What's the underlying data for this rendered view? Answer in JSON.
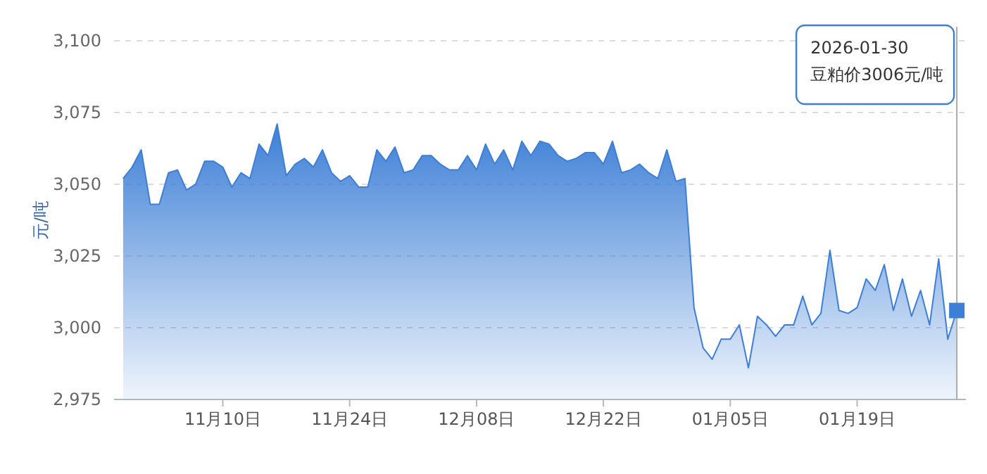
{
  "chart_data": {
    "type": "area",
    "ylabel": "元/吨",
    "x": [
      "2025-10-30",
      "2025-10-31",
      "2025-11-01",
      "2025-11-02",
      "2025-11-03",
      "2025-11-04",
      "2025-11-05",
      "2025-11-06",
      "2025-11-07",
      "2025-11-08",
      "2025-11-09",
      "2025-11-10",
      "2025-11-11",
      "2025-11-12",
      "2025-11-13",
      "2025-11-14",
      "2025-11-15",
      "2025-11-16",
      "2025-11-17",
      "2025-11-18",
      "2025-11-19",
      "2025-11-20",
      "2025-11-21",
      "2025-11-22",
      "2025-11-23",
      "2025-11-24",
      "2025-11-25",
      "2025-11-26",
      "2025-11-27",
      "2025-11-28",
      "2025-11-29",
      "2025-11-30",
      "2025-12-01",
      "2025-12-02",
      "2025-12-03",
      "2025-12-04",
      "2025-12-05",
      "2025-12-06",
      "2025-12-07",
      "2025-12-08",
      "2025-12-09",
      "2025-12-10",
      "2025-12-11",
      "2025-12-12",
      "2025-12-13",
      "2025-12-14",
      "2025-12-15",
      "2025-12-16",
      "2025-12-17",
      "2025-12-18",
      "2025-12-19",
      "2025-12-20",
      "2025-12-21",
      "2025-12-22",
      "2025-12-23",
      "2025-12-24",
      "2025-12-25",
      "2025-12-26",
      "2025-12-27",
      "2025-12-28",
      "2025-12-29",
      "2025-12-30",
      "2025-12-31",
      "2026-01-01",
      "2026-01-02",
      "2026-01-03",
      "2026-01-04",
      "2026-01-05",
      "2026-01-06",
      "2026-01-07",
      "2026-01-08",
      "2026-01-09",
      "2026-01-10",
      "2026-01-11",
      "2026-01-12",
      "2026-01-13",
      "2026-01-14",
      "2026-01-15",
      "2026-01-16",
      "2026-01-17",
      "2026-01-18",
      "2026-01-19",
      "2026-01-20",
      "2026-01-21",
      "2026-01-22",
      "2026-01-23",
      "2026-01-24",
      "2026-01-25",
      "2026-01-26",
      "2026-01-27",
      "2026-01-28",
      "2026-01-29",
      "2026-01-30"
    ],
    "series": [
      {
        "color": "#3d7fd6",
        "values": [
          3052,
          3056,
          3062,
          3043,
          3043,
          3054,
          3055,
          3048,
          3050,
          3058,
          3058,
          3056,
          3049,
          3054,
          3052,
          3064,
          3060,
          3071,
          3053,
          3057,
          3059,
          3056,
          3062,
          3054,
          3051,
          3053,
          3049,
          3049,
          3062,
          3058,
          3063,
          3054,
          3055,
          3060,
          3060,
          3057,
          3055,
          3055,
          3060,
          3055,
          3064,
          3057,
          3062,
          3055,
          3065,
          3060,
          3065,
          3064,
          3060,
          3058,
          3059,
          3061,
          3061,
          3057,
          3065,
          3054,
          3055,
          3057,
          3054,
          3052,
          3062,
          3051,
          3052,
          3007,
          2993,
          2989,
          2996,
          2996,
          3001,
          2986,
          3004,
          3001,
          2997,
          3001,
          3001,
          3011,
          3001,
          3005,
          3027,
          3006,
          3005,
          3007,
          3017,
          3013,
          3022,
          3006,
          3017,
          3004,
          3013,
          3001,
          3024,
          2996,
          3006
        ]
      }
    ],
    "xlim": [
      "2025-10-29",
      "2026-01-31"
    ],
    "xticks": [
      {
        "value": "2025-11-10",
        "label": "11月10日"
      },
      {
        "value": "2025-11-24",
        "label": "11月24日"
      },
      {
        "value": "2025-12-08",
        "label": "12月08日"
      },
      {
        "value": "2025-12-22",
        "label": "12月22日"
      },
      {
        "value": "2026-01-05",
        "label": "01月05日"
      },
      {
        "value": "2026-01-19",
        "label": "01月19日"
      }
    ],
    "ylim": [
      2975,
      3100
    ],
    "yticks": [
      {
        "value": 2975,
        "label": "2,975"
      },
      {
        "value": 3000,
        "label": "3,000"
      },
      {
        "value": 3025,
        "label": "3,025"
      },
      {
        "value": 3050,
        "label": "3,050"
      },
      {
        "value": 3075,
        "label": "3,075"
      },
      {
        "value": 3100,
        "label": "3,100"
      }
    ],
    "grid": "y",
    "marker": "none",
    "line_style": "solid",
    "ref_lines": [
      {
        "axis": "x",
        "value": "2026-01-30",
        "label": null,
        "color": "#aaaaaa"
      }
    ],
    "annotations": [
      "2026-01-30",
      "豆粕价3006元/吨"
    ]
  }
}
